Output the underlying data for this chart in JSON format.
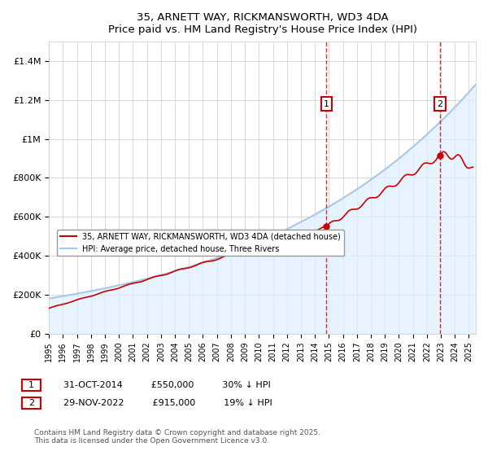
{
  "title": "35, ARNETT WAY, RICKMANSWORTH, WD3 4DA",
  "subtitle": "Price paid vs. HM Land Registry's House Price Index (HPI)",
  "legend_line1": "35, ARNETT WAY, RICKMANSWORTH, WD3 4DA (detached house)",
  "legend_line2": "HPI: Average price, detached house, Three Rivers",
  "annotation1": {
    "label": "1",
    "date_str": "31-OCT-2014",
    "price": "£550,000",
    "note": "30% ↓ HPI"
  },
  "annotation2": {
    "label": "2",
    "date_str": "29-NOV-2022",
    "price": "£915,000",
    "note": "19% ↓ HPI"
  },
  "footer": "Contains HM Land Registry data © Crown copyright and database right 2025.\nThis data is licensed under the Open Government Licence v3.0.",
  "hpi_color": "#a8c8e8",
  "price_color": "#cc0000",
  "annotation_color": "#cc0000",
  "dashed_color": "#cc0000",
  "background_fill": "#ddeeff",
  "ylim": [
    0,
    1500000
  ],
  "yticks": [
    0,
    200000,
    400000,
    600000,
    800000,
    1000000,
    1200000,
    1400000
  ],
  "xlim_start": 1995.0,
  "xlim_end": 2025.5,
  "sale1_x": 2014.83,
  "sale2_x": 2022.92,
  "hpi_start_x": 2014.83
}
